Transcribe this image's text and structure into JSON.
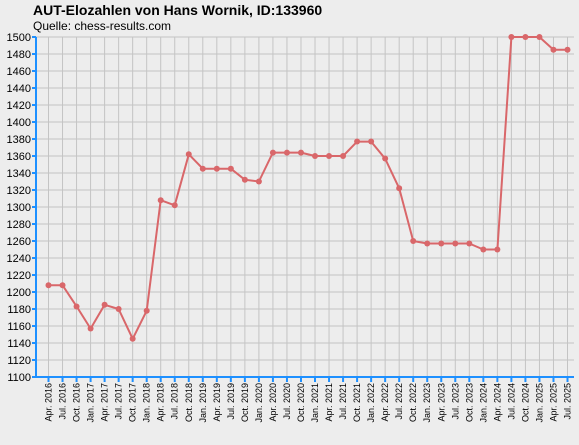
{
  "title": "AUT-Elozahlen von Hans Wornik, ID:133960",
  "subtitle": "Quelle: chess-results.com",
  "chart_data": {
    "type": "line",
    "title": "AUT-Elozahlen von Hans Wornik, ID:133960",
    "subtitle": "Quelle: chess-results.com",
    "xlabel": "",
    "ylabel": "",
    "ylim": [
      1100,
      1500
    ],
    "ytick_step": 20,
    "grid": true,
    "legend": "none",
    "colors": {
      "line": "#d9676a",
      "axis": "#1e90ff",
      "grid": "#c4c4c4",
      "background": "#ededed"
    },
    "categories": [
      "Apr. 2016",
      "Jul. 2016",
      "Oct. 2016",
      "Jan. 2017",
      "Apr. 2017",
      "Jul. 2017",
      "Oct. 2017",
      "Jan. 2018",
      "Apr. 2018",
      "Jul. 2018",
      "Oct. 2018",
      "Jan. 2019",
      "Apr. 2019",
      "Jul. 2019",
      "Oct. 2019",
      "Jan. 2020",
      "Apr. 2020",
      "Jul. 2020",
      "Oct. 2020",
      "Jan. 2021",
      "Apr. 2021",
      "Jul. 2021",
      "Oct. 2021",
      "Jan. 2022",
      "Apr. 2022",
      "Jul. 2022",
      "Oct. 2022",
      "Jan. 2023",
      "Apr. 2023",
      "Jul. 2023",
      "Oct. 2023",
      "Jan. 2024",
      "Apr. 2024",
      "Jul. 2024",
      "Oct. 2024",
      "Jan. 2025",
      "Apr. 2025",
      "Jul. 2025"
    ],
    "series": [
      {
        "values": [
          1208,
          1208,
          1183,
          1157,
          1185,
          1180,
          1145,
          1178,
          1308,
          1302,
          1362,
          1345,
          1345,
          1345,
          1332,
          1330,
          1364,
          1364,
          1364,
          1360,
          1360,
          1360,
          1377,
          1377,
          1357,
          1322,
          1260,
          1257,
          1257,
          1257,
          1257,
          1250,
          1250,
          1500,
          1500,
          1500,
          1485,
          1485
        ]
      }
    ]
  }
}
